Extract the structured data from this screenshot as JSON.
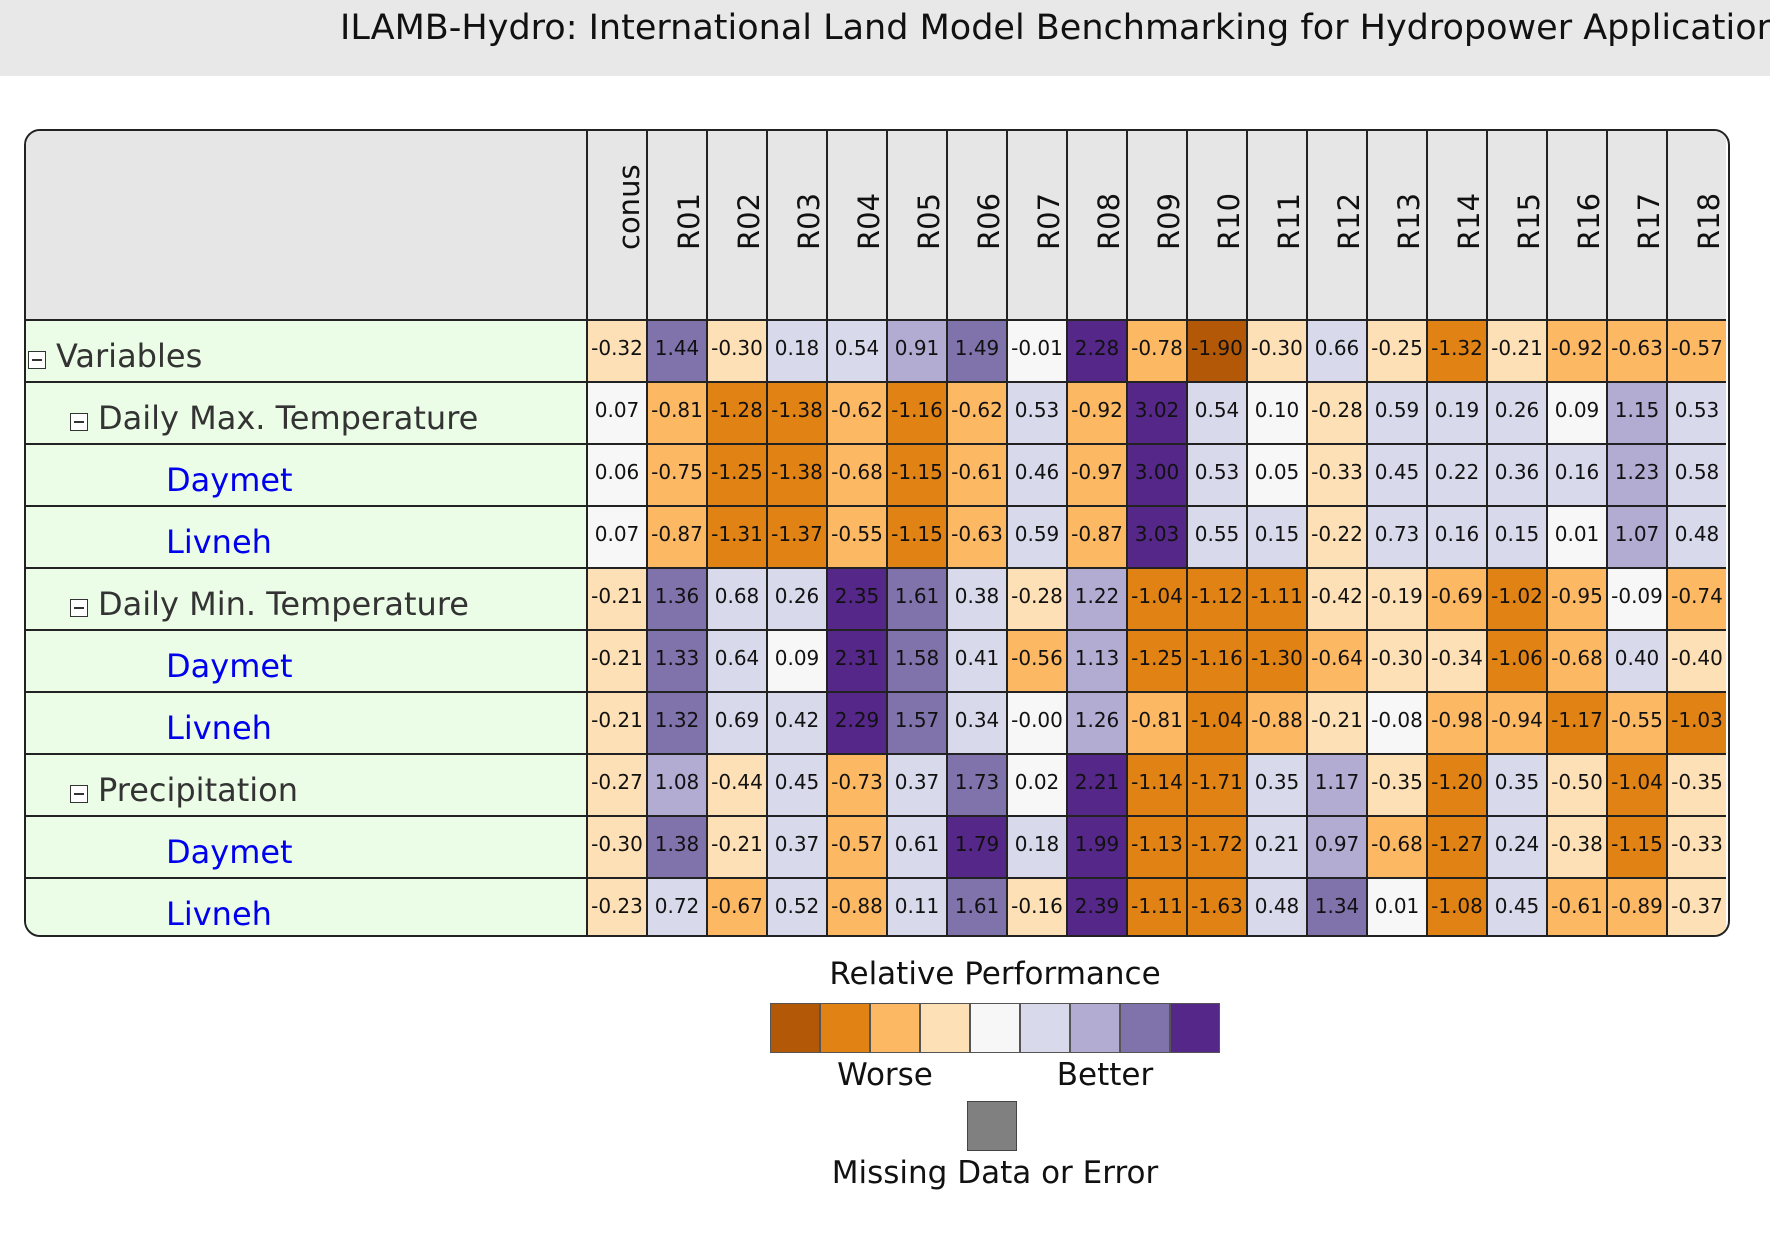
{
  "page": {
    "title": "ILAMB-Hydro: International Land Model Benchmarking for Hydropower Applications"
  },
  "scorecard": {
    "columns": [
      "conus",
      "R01",
      "R02",
      "R03",
      "R04",
      "R05",
      "R06",
      "R07",
      "R08",
      "R09",
      "R10",
      "R11",
      "R12",
      "R13",
      "R14",
      "R15",
      "R16",
      "R17",
      "R18"
    ],
    "rows": [
      {
        "label": "Variables",
        "level": 0,
        "toggle": true,
        "link": false,
        "values": [
          "-0.32",
          "1.44",
          "-0.30",
          "0.18",
          "0.54",
          "0.91",
          "1.49",
          "-0.01",
          "2.28",
          "-0.78",
          "-1.90",
          "-0.30",
          "0.66",
          "-0.25",
          "-1.32",
          "-0.21",
          "-0.92",
          "-0.63",
          "-0.57"
        ]
      },
      {
        "label": "Daily Max. Temperature",
        "level": 1,
        "toggle": true,
        "link": false,
        "values": [
          "0.07",
          "-0.81",
          "-1.28",
          "-1.38",
          "-0.62",
          "-1.16",
          "-0.62",
          "0.53",
          "-0.92",
          "3.02",
          "0.54",
          "0.10",
          "-0.28",
          "0.59",
          "0.19",
          "0.26",
          "0.09",
          "1.15",
          "0.53"
        ]
      },
      {
        "label": "Daymet",
        "level": 2,
        "toggle": false,
        "link": true,
        "values": [
          "0.06",
          "-0.75",
          "-1.25",
          "-1.38",
          "-0.68",
          "-1.15",
          "-0.61",
          "0.46",
          "-0.97",
          "3.00",
          "0.53",
          "0.05",
          "-0.33",
          "0.45",
          "0.22",
          "0.36",
          "0.16",
          "1.23",
          "0.58"
        ]
      },
      {
        "label": "Livneh",
        "level": 2,
        "toggle": false,
        "link": true,
        "values": [
          "0.07",
          "-0.87",
          "-1.31",
          "-1.37",
          "-0.55",
          "-1.15",
          "-0.63",
          "0.59",
          "-0.87",
          "3.03",
          "0.55",
          "0.15",
          "-0.22",
          "0.73",
          "0.16",
          "0.15",
          "0.01",
          "1.07",
          "0.48"
        ]
      },
      {
        "label": "Daily Min. Temperature",
        "level": 1,
        "toggle": true,
        "link": false,
        "values": [
          "-0.21",
          "1.36",
          "0.68",
          "0.26",
          "2.35",
          "1.61",
          "0.38",
          "-0.28",
          "1.22",
          "-1.04",
          "-1.12",
          "-1.11",
          "-0.42",
          "-0.19",
          "-0.69",
          "-1.02",
          "-0.95",
          "-0.09",
          "-0.74"
        ]
      },
      {
        "label": "Daymet",
        "level": 2,
        "toggle": false,
        "link": true,
        "values": [
          "-0.21",
          "1.33",
          "0.64",
          "0.09",
          "2.31",
          "1.58",
          "0.41",
          "-0.56",
          "1.13",
          "-1.25",
          "-1.16",
          "-1.30",
          "-0.64",
          "-0.30",
          "-0.34",
          "-1.06",
          "-0.68",
          "0.40",
          "-0.40"
        ]
      },
      {
        "label": "Livneh",
        "level": 2,
        "toggle": false,
        "link": true,
        "values": [
          "-0.21",
          "1.32",
          "0.69",
          "0.42",
          "2.29",
          "1.57",
          "0.34",
          "-0.00",
          "1.26",
          "-0.81",
          "-1.04",
          "-0.88",
          "-0.21",
          "-0.08",
          "-0.98",
          "-0.94",
          "-1.17",
          "-0.55",
          "-1.03"
        ]
      },
      {
        "label": "Precipitation",
        "level": 1,
        "toggle": true,
        "link": false,
        "values": [
          "-0.27",
          "1.08",
          "-0.44",
          "0.45",
          "-0.73",
          "0.37",
          "1.73",
          "0.02",
          "2.21",
          "-1.14",
          "-1.71",
          "0.35",
          "1.17",
          "-0.35",
          "-1.20",
          "0.35",
          "-0.50",
          "-1.04",
          "-0.35"
        ]
      },
      {
        "label": "Daymet",
        "level": 2,
        "toggle": false,
        "link": true,
        "values": [
          "-0.30",
          "1.38",
          "-0.21",
          "0.37",
          "-0.57",
          "0.61",
          "1.79",
          "0.18",
          "1.99",
          "-1.13",
          "-1.72",
          "0.21",
          "0.97",
          "-0.68",
          "-1.27",
          "0.24",
          "-0.38",
          "-1.15",
          "-0.33"
        ]
      },
      {
        "label": "Livneh",
        "level": 2,
        "toggle": false,
        "link": true,
        "values": [
          "-0.23",
          "0.72",
          "-0.67",
          "0.52",
          "-0.88",
          "0.11",
          "1.61",
          "-0.16",
          "2.39",
          "-1.11",
          "-1.63",
          "0.48",
          "1.34",
          "0.01",
          "-1.08",
          "0.45",
          "-0.61",
          "-0.89",
          "-0.37"
        ]
      }
    ]
  },
  "legend": {
    "title": "Relative Performance",
    "palette": [
      "#b35806",
      "#e08214",
      "#fdb863",
      "#fee0b6",
      "#f7f7f7",
      "#d8daeb",
      "#b2abd2",
      "#8073ac",
      "#542788"
    ],
    "worse_label": "Worse",
    "better_label": "Better",
    "missing_color": "#808080",
    "missing_label": "Missing Data or Error"
  }
}
